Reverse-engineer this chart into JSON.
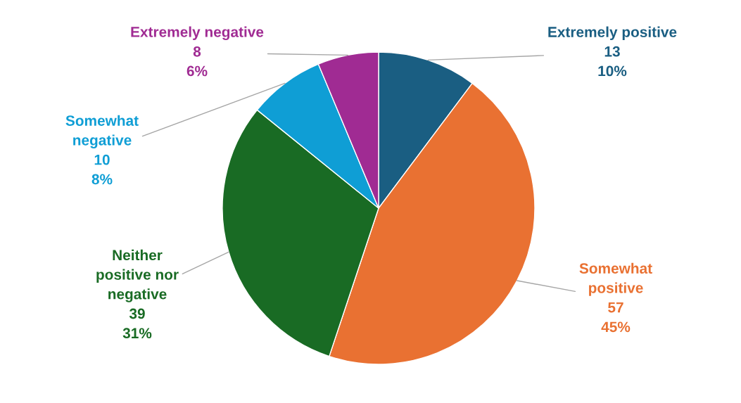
{
  "chart_data": {
    "type": "pie",
    "categories": [
      "Extremely positive",
      "Somewhat\npositive",
      "Neither\npositive nor\nnegative",
      "Somewhat\nnegative",
      "Extremely negative"
    ],
    "values": [
      13,
      57,
      39,
      10,
      8
    ],
    "colors": [
      "#1a5e82",
      "#e97132",
      "#196b24",
      "#0f9ed5",
      "#a02b93"
    ],
    "value_labels": [
      "13\n10%",
      "57\n45%",
      "39\n31%",
      "10\n8%",
      "8\n6%"
    ],
    "legend": false
  }
}
